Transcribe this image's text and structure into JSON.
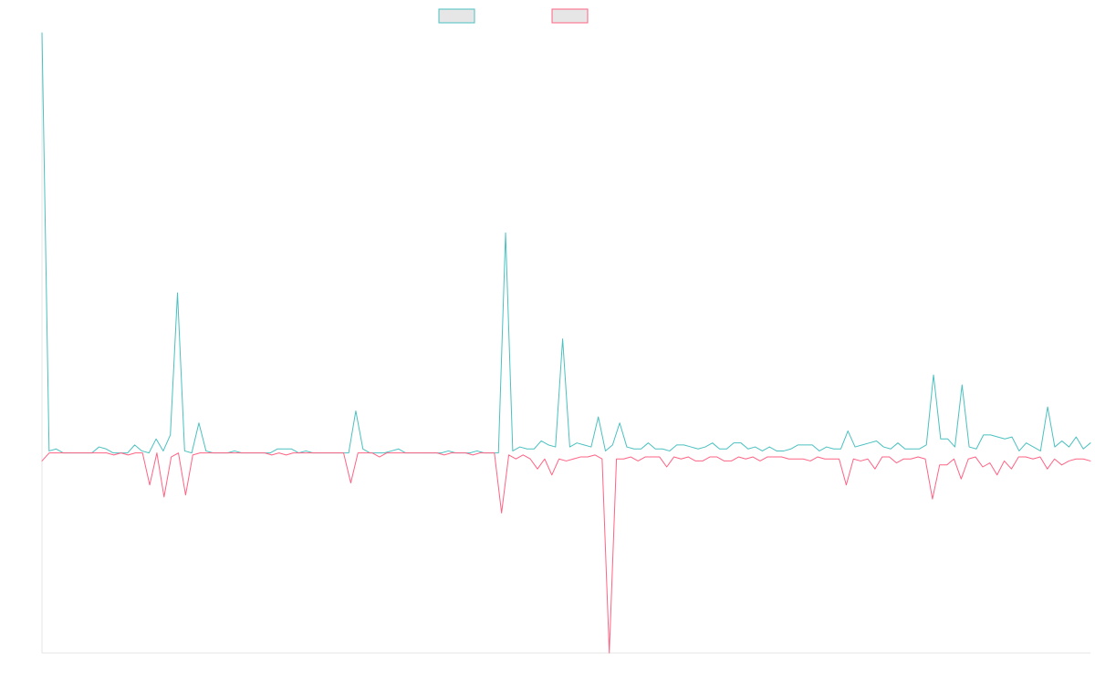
{
  "chart_data": {
    "type": "line",
    "title": "",
    "xlabel": "",
    "ylabel": "",
    "grid": false,
    "legend": "top-center",
    "ylim": [
      -100,
      210
    ],
    "series": [
      {
        "color": "#4bc0c0",
        "values": [
          210,
          1,
          2,
          0,
          0,
          0,
          0,
          0,
          3,
          2,
          0,
          0,
          0,
          4,
          1,
          0,
          7,
          1,
          9,
          80,
          1,
          0,
          15,
          1,
          0,
          0,
          0,
          1,
          0,
          0,
          0,
          0,
          0,
          2,
          2,
          2,
          0,
          1,
          0,
          0,
          0,
          0,
          0,
          0,
          21,
          2,
          0,
          0,
          0,
          1,
          2,
          0,
          0,
          0,
          0,
          0,
          0,
          1,
          0,
          0,
          0,
          1,
          0,
          0,
          0,
          110,
          1,
          3,
          2,
          2,
          6,
          4,
          3,
          57,
          3,
          5,
          4,
          3,
          18,
          1,
          4,
          15,
          3,
          2,
          2,
          5,
          2,
          2,
          1,
          4,
          4,
          3,
          2,
          3,
          5,
          2,
          2,
          5,
          5,
          2,
          3,
          1,
          3,
          1,
          1,
          2,
          4,
          4,
          4,
          1,
          3,
          2,
          2,
          11,
          3,
          4,
          5,
          6,
          3,
          2,
          5,
          2,
          2,
          2,
          4,
          39,
          7,
          7,
          3,
          34,
          3,
          2,
          9,
          9,
          8,
          7,
          8,
          1,
          5,
          3,
          1,
          23,
          3,
          6,
          3,
          8,
          2,
          5
        ]
      },
      {
        "color": "#ff6384",
        "values": [
          -4,
          0,
          0,
          0,
          0,
          0,
          0,
          0,
          0,
          0,
          -1,
          0,
          -1,
          0,
          0,
          -16,
          0,
          -22,
          -2,
          0,
          -21,
          -1,
          0,
          0,
          0,
          0,
          0,
          0,
          0,
          0,
          0,
          0,
          -1,
          0,
          -1,
          0,
          0,
          0,
          0,
          0,
          0,
          0,
          0,
          -15,
          0,
          0,
          0,
          -2,
          0,
          0,
          0,
          0,
          0,
          0,
          0,
          0,
          -1,
          0,
          0,
          0,
          -1,
          0,
          0,
          0,
          -30,
          -1,
          -3,
          -1,
          -3,
          -8,
          -3,
          -11,
          -3,
          -4,
          -3,
          -2,
          -2,
          -1,
          -3,
          -100,
          -3,
          -3,
          -2,
          -4,
          -2,
          -2,
          -2,
          -7,
          -2,
          -3,
          -2,
          -4,
          -4,
          -2,
          -2,
          -4,
          -4,
          -2,
          -3,
          -2,
          -4,
          -2,
          -2,
          -2,
          -3,
          -3,
          -3,
          -4,
          -2,
          -3,
          -3,
          -3,
          -16,
          -3,
          -4,
          -3,
          -8,
          -2,
          -2,
          -5,
          -3,
          -3,
          -2,
          -3,
          -23,
          -6,
          -6,
          -3,
          -13,
          -3,
          -2,
          -7,
          -5,
          -11,
          -4,
          -8,
          -2,
          -2,
          -3,
          -2,
          -8,
          -3,
          -6,
          -4,
          -3,
          -3,
          -4
        ]
      }
    ]
  }
}
